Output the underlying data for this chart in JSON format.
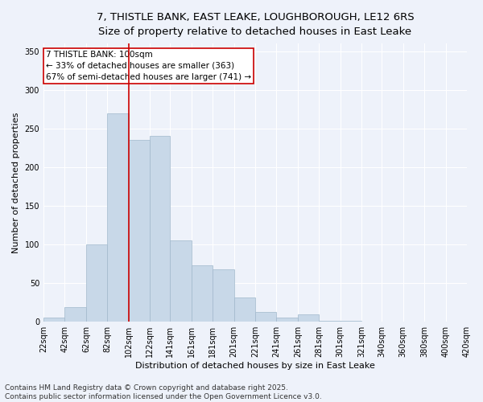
{
  "title_line1": "7, THISTLE BANK, EAST LEAKE, LOUGHBOROUGH, LE12 6RS",
  "title_line2": "Size of property relative to detached houses in East Leake",
  "xlabel": "Distribution of detached houses by size in East Leake",
  "ylabel": "Number of detached properties",
  "bar_color": "#c8d8e8",
  "bar_edge_color": "#a0b8cc",
  "background_color": "#eef2fa",
  "grid_color": "#ffffff",
  "vline_x": 102,
  "vline_color": "#cc0000",
  "annotation_box_color": "#cc0000",
  "annotation_text": "7 THISTLE BANK: 100sqm\n← 33% of detached houses are smaller (363)\n67% of semi-detached houses are larger (741) →",
  "bins": [
    22,
    42,
    62,
    82,
    102,
    122,
    141,
    161,
    181,
    201,
    221,
    241,
    261,
    281,
    301,
    321,
    340,
    360,
    380,
    400,
    420
  ],
  "values": [
    5,
    19,
    100,
    270,
    235,
    240,
    105,
    73,
    68,
    31,
    13,
    5,
    10,
    1,
    1,
    0,
    0,
    0,
    0,
    0
  ],
  "ylim": [
    0,
    360
  ],
  "yticks": [
    0,
    50,
    100,
    150,
    200,
    250,
    300,
    350
  ],
  "footer_text": "Contains HM Land Registry data © Crown copyright and database right 2025.\nContains public sector information licensed under the Open Government Licence v3.0.",
  "title_fontsize": 9.5,
  "subtitle_fontsize": 9,
  "axis_label_fontsize": 8,
  "tick_fontsize": 7,
  "footer_fontsize": 6.5,
  "annot_fontsize": 7.5
}
